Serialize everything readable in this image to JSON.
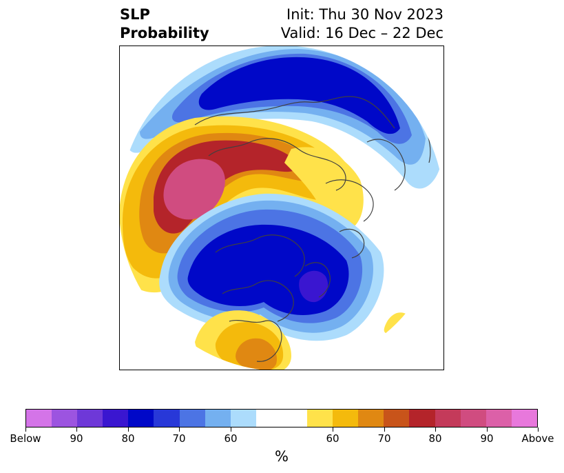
{
  "title": {
    "left_line1": "SLP",
    "left_line2": "Probability",
    "right_line1": "Init: Thu 30 Nov 2023",
    "right_line2": "Valid: 16 Dec – 22 Dec"
  },
  "colorbar": {
    "colors": [
      "#d474e8",
      "#9c54e0",
      "#6e38d8",
      "#3a16d0",
      "#0008c8",
      "#2838d8",
      "#4c74e4",
      "#74b0f0",
      "#acdcfc",
      "#ffffff",
      "#ffffff",
      "#ffe24a",
      "#f4ba0c",
      "#e08812",
      "#c8541a",
      "#b4242a",
      "#c43a5a",
      "#d04c80",
      "#dc60a8",
      "#e878dc"
    ],
    "tick_labels": [
      "Below",
      "90",
      "80",
      "70",
      "60",
      "60",
      "70",
      "80",
      "90",
      "Above"
    ],
    "unit": "%"
  },
  "map": {
    "projection": "north-polar-stereographic",
    "colors": {
      "below_strong": "#3a16d0",
      "below_mid": "#0008c8",
      "below_weak": "#4c74e4",
      "below_light": "#74b0f0",
      "below_faint": "#acdcfc",
      "above_faint": "#ffe24a",
      "above_light": "#f4ba0c",
      "above_mid": "#e08812",
      "above_strong": "#b4242a",
      "above_max": "#d04c80",
      "coastline": "#404040"
    }
  }
}
